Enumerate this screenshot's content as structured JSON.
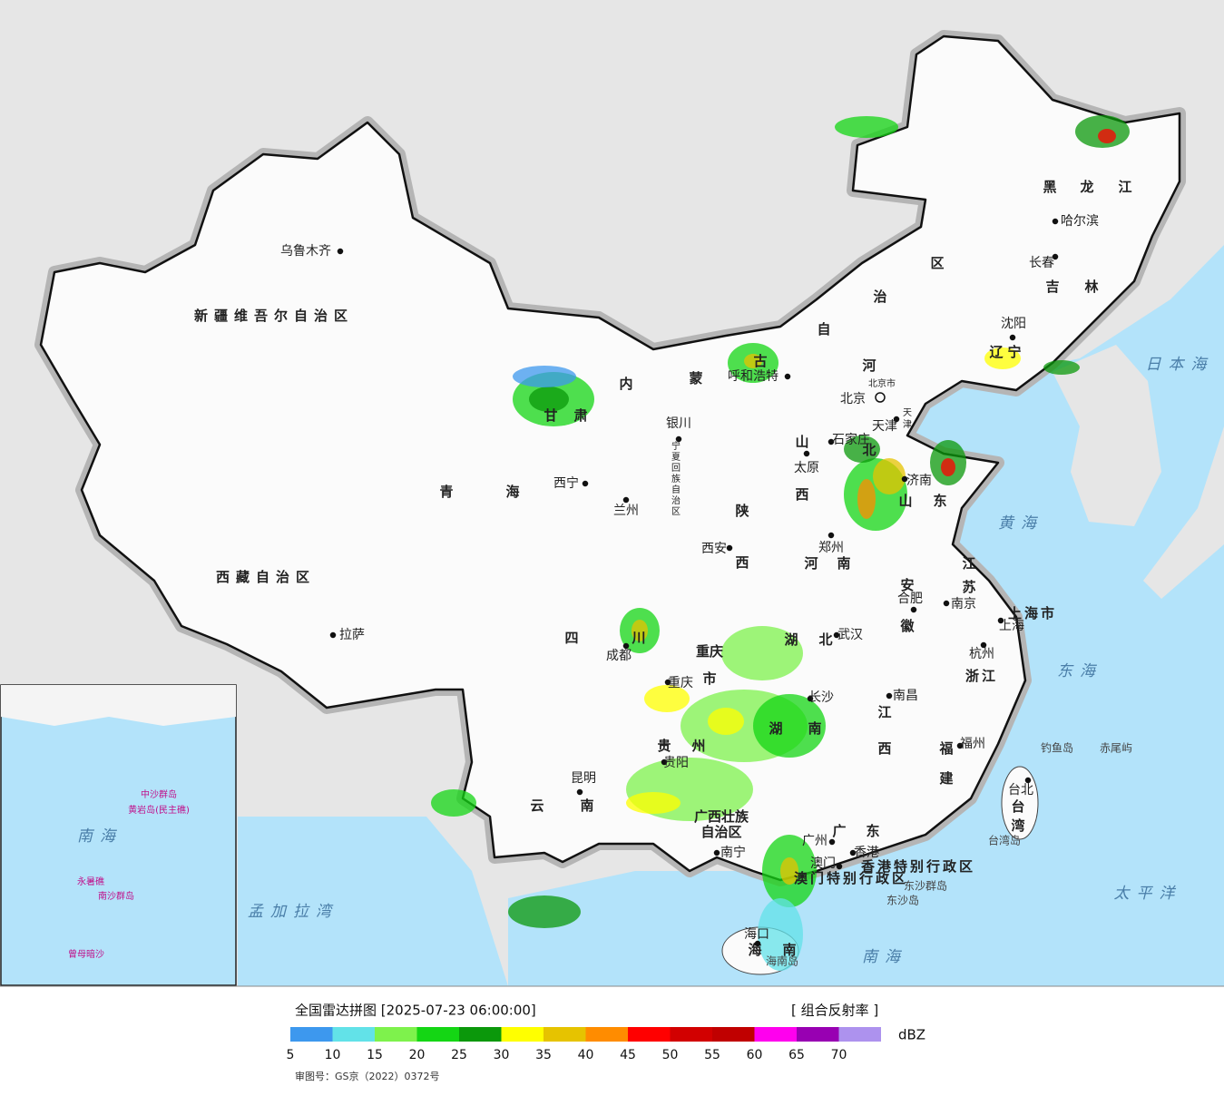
{
  "map": {
    "provinces": [
      "新疆维吾尔自治区",
      "西藏自治区",
      "青海",
      "甘肃",
      "内蒙古自治区",
      "黑龙江",
      "吉林",
      "辽宁",
      "河北",
      "山西",
      "山东",
      "河南",
      "陕西",
      "四川",
      "重庆市",
      "湖北",
      "湖南",
      "贵州",
      "云南",
      "广西壮族自治区",
      "广东",
      "江西",
      "安徽",
      "江苏",
      "浙江",
      "福建",
      "台湾",
      "海南",
      "上海市",
      "宁夏回族自治区",
      "北京市",
      "天津",
      "香港特别行政区",
      "澳门特别行政区"
    ],
    "cities": [
      "乌鲁木齐",
      "拉萨",
      "西宁",
      "兰州",
      "银川",
      "呼和浩特",
      "北京",
      "天津",
      "石家庄",
      "太原",
      "济南",
      "郑州",
      "西安",
      "成都",
      "重庆",
      "武汉",
      "合肥",
      "南京",
      "上海",
      "杭州",
      "南昌",
      "长沙",
      "贵阳",
      "昆明",
      "南宁",
      "广州",
      "香港",
      "澳门",
      "海口",
      "福州",
      "台北",
      "沈阳",
      "长春",
      "哈尔滨"
    ],
    "seas": [
      "日本海",
      "黄海",
      "东海",
      "南海",
      "太平洋",
      "孟加拉湾"
    ],
    "islands": [
      "钓鱼岛",
      "赤尾屿",
      "台湾岛",
      "东沙群岛",
      "东沙岛",
      "海南岛"
    ]
  },
  "inset": {
    "labels": [
      "南海",
      "中沙群岛",
      "黄岩岛(民主礁)",
      "永暑礁",
      "南沙群岛",
      "曾母暗沙"
    ]
  },
  "footer": {
    "title": "全国雷达拼图 [2025-07-23 06:00:00]",
    "product": "[ 组合反射率 ]",
    "unit": "dBZ",
    "approval": "审图号：GS京（2022）0372号",
    "scale": [
      {
        "value": 5,
        "color": "#3d98ee"
      },
      {
        "value": 10,
        "color": "#62e2e8"
      },
      {
        "value": 15,
        "color": "#7ef24c"
      },
      {
        "value": 20,
        "color": "#14d614"
      },
      {
        "value": 25,
        "color": "#0b980b"
      },
      {
        "value": 30,
        "color": "#ffff00"
      },
      {
        "value": 35,
        "color": "#e6c300"
      },
      {
        "value": 40,
        "color": "#ff8c00"
      },
      {
        "value": 45,
        "color": "#ff0000"
      },
      {
        "value": 50,
        "color": "#d20000"
      },
      {
        "value": 55,
        "color": "#c00000"
      },
      {
        "value": 60,
        "color": "#ff00ee"
      },
      {
        "value": 65,
        "color": "#9800b2"
      },
      {
        "value": 70,
        "color": "#ad92ee"
      }
    ]
  }
}
